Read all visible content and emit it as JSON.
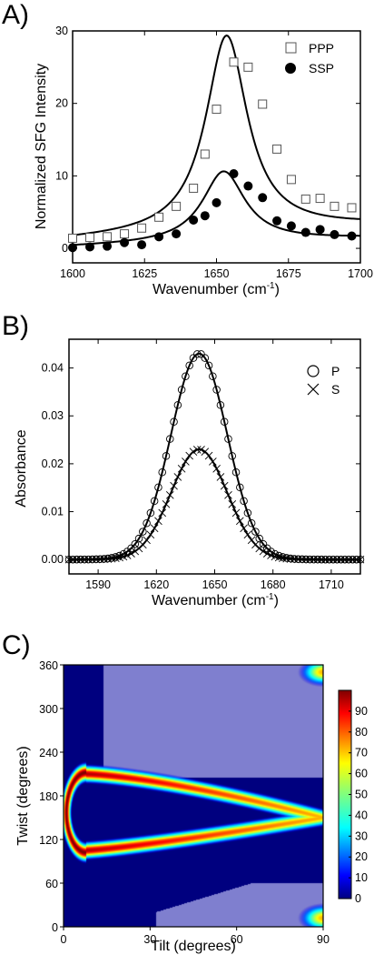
{
  "chart_data": [
    {
      "panel": "A)",
      "type": "scatter",
      "xlabel": "Wavenumber (cm",
      "xlabel_sup": "-1",
      "xlabel_close": ")",
      "ylabel": "Normalized SFG Intensity",
      "xlim": [
        1600,
        1700
      ],
      "ylim": [
        -2,
        30
      ],
      "xticks": [
        1600,
        1625,
        1650,
        1675,
        1700
      ],
      "yticks": [
        0,
        10,
        20,
        30
      ],
      "legend_position": "top-right",
      "series": [
        {
          "name": "PPP",
          "marker": "open-square",
          "x": [
            1600,
            1606,
            1612,
            1618,
            1624,
            1630,
            1636,
            1642,
            1646,
            1650,
            1656,
            1661,
            1666,
            1671,
            1676,
            1681,
            1686,
            1691,
            1697
          ],
          "y": [
            1.4,
            1.5,
            1.6,
            2.0,
            2.8,
            4.3,
            5.8,
            8.3,
            13.0,
            19.2,
            25.7,
            25.0,
            19.9,
            13.7,
            9.5,
            6.8,
            6.9,
            5.8,
            5.6
          ]
        },
        {
          "name": "SSP",
          "marker": "filled-circle",
          "x": [
            1600,
            1606,
            1612,
            1618,
            1624,
            1630,
            1636,
            1642,
            1646,
            1650,
            1656,
            1661,
            1666,
            1671,
            1676,
            1681,
            1686,
            1691,
            1697
          ],
          "y": [
            0.1,
            0.2,
            0.3,
            0.8,
            0.5,
            1.6,
            2.0,
            3.9,
            4.5,
            6.3,
            10.3,
            8.6,
            7.0,
            3.8,
            3.1,
            2.2,
            2.6,
            1.9,
            1.7
          ]
        }
      ],
      "fits": [
        {
          "for": "PPP",
          "center": 1653.5,
          "width": 8.8,
          "peak": 28.3,
          "baseline": 1.1,
          "background_slope": 0.02
        },
        {
          "for": "SSP",
          "center": 1652.5,
          "width": 9.0,
          "peak": 10.0,
          "baseline": 0.2,
          "background_slope": 0.012
        }
      ]
    },
    {
      "panel": "B)",
      "type": "line",
      "xlabel": "Wavenumber (cm",
      "xlabel_sup": "-1",
      "xlabel_close": ")",
      "ylabel": "Absorbance",
      "xlim": [
        1575,
        1725
      ],
      "ylim": [
        -0.003,
        0.046
      ],
      "xticks": [
        1590,
        1620,
        1650,
        1680,
        1710
      ],
      "yticks": [
        0.0,
        0.01,
        0.02,
        0.03,
        0.04
      ],
      "ytick_labels": [
        "0.00",
        "0.01",
        "0.02",
        "0.03",
        "0.04"
      ],
      "legend_position": "top-right",
      "series": [
        {
          "name": "P",
          "marker": "open-circle",
          "center": 1642,
          "amplitude": 0.043,
          "sigma": 14.5
        },
        {
          "name": "S",
          "marker": "x-cross",
          "center": 1642,
          "amplitude": 0.023,
          "sigma": 14.5
        }
      ],
      "x_sampling": {
        "start": 1575,
        "end": 1725,
        "step": 2
      }
    },
    {
      "panel": "C)",
      "type": "heatmap",
      "xlabel": "Tilt (degrees)",
      "ylabel": "Twist (degrees)",
      "xlim": [
        0,
        90
      ],
      "ylim": [
        0,
        360
      ],
      "xticks": [
        0,
        30,
        60,
        90
      ],
      "yticks": [
        0,
        60,
        120,
        180,
        240,
        300,
        360
      ],
      "colorbar": {
        "min": 0,
        "max": 100,
        "ticks": [
          0,
          10,
          20,
          30,
          40,
          50,
          60,
          70,
          80,
          90
        ]
      },
      "colormap": "jet",
      "masked_region_color": "#7f7fcf",
      "background_color": "#00007f"
    }
  ]
}
